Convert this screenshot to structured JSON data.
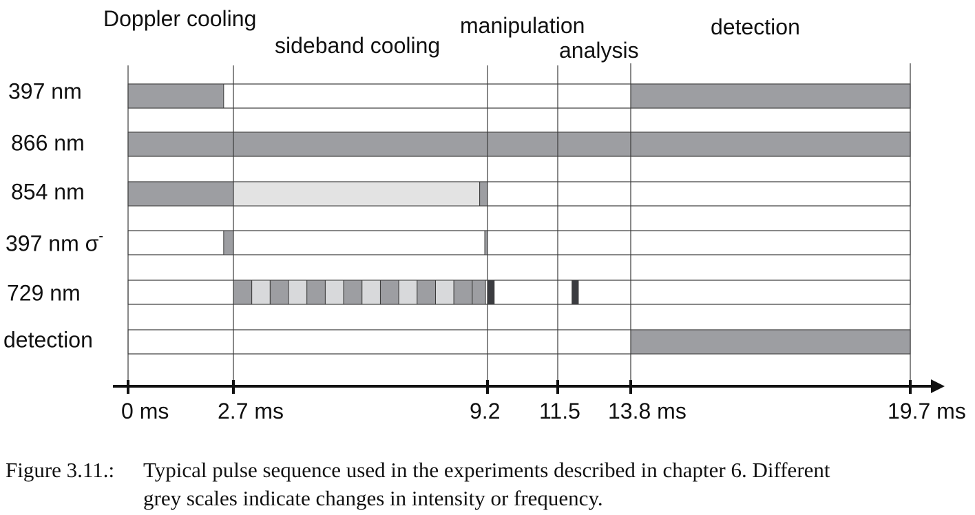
{
  "phases": [
    {
      "label": "Doppler cooling"
    },
    {
      "label": "sideband cooling"
    },
    {
      "label": "manipulation"
    },
    {
      "label": "analysis"
    },
    {
      "label": "detection"
    }
  ],
  "rows": [
    {
      "label": "397 nm",
      "segments": [
        {
          "t0": 0,
          "t1": 2.45,
          "shade": "#9d9ea2"
        },
        {
          "t0": 13.8,
          "t1": 19.7,
          "shade": "#9d9ea2"
        }
      ]
    },
    {
      "label": "866 nm",
      "segments": [
        {
          "t0": 0,
          "t1": 19.7,
          "shade": "#9d9ea2"
        }
      ]
    },
    {
      "label": "854 nm",
      "segments": [
        {
          "t0": 0,
          "t1": 2.7,
          "shade": "#9d9ea2"
        },
        {
          "t0": 2.7,
          "t1": 9.0,
          "shade": "#e3e3e3"
        },
        {
          "t0": 9.0,
          "t1": 9.2,
          "shade": "#9d9ea2"
        }
      ]
    },
    {
      "label": "397 nm σ",
      "superscript": "-",
      "segments": [
        {
          "t0": 2.45,
          "t1": 2.7,
          "shade": "#9d9ea2"
        },
        {
          "t0": 9.13,
          "t1": 9.2,
          "shade": "#9d9ea2"
        }
      ]
    },
    {
      "label": "729 nm",
      "segments": [
        {
          "t0": 2.7,
          "t1": 3.17,
          "shade": "#9d9ea2"
        },
        {
          "t0": 3.17,
          "t1": 3.64,
          "shade": "#d8d9db"
        },
        {
          "t0": 3.64,
          "t1": 4.11,
          "shade": "#9d9ea2"
        },
        {
          "t0": 4.11,
          "t1": 4.58,
          "shade": "#d8d9db"
        },
        {
          "t0": 4.58,
          "t1": 5.05,
          "shade": "#9d9ea2"
        },
        {
          "t0": 5.05,
          "t1": 5.52,
          "shade": "#d8d9db"
        },
        {
          "t0": 5.52,
          "t1": 5.99,
          "shade": "#9d9ea2"
        },
        {
          "t0": 5.99,
          "t1": 6.46,
          "shade": "#d8d9db"
        },
        {
          "t0": 6.46,
          "t1": 6.93,
          "shade": "#9d9ea2"
        },
        {
          "t0": 6.93,
          "t1": 7.4,
          "shade": "#d8d9db"
        },
        {
          "t0": 7.4,
          "t1": 7.87,
          "shade": "#9d9ea2"
        },
        {
          "t0": 7.87,
          "t1": 8.34,
          "shade": "#d8d9db"
        },
        {
          "t0": 8.34,
          "t1": 8.81,
          "shade": "#9d9ea2"
        },
        {
          "t0": 8.81,
          "t1": 9.15,
          "shade": "#9d9ea2"
        },
        {
          "t0": 9.2,
          "t1": 9.42,
          "shade": "#3b3c40"
        },
        {
          "t0": 11.95,
          "t1": 12.15,
          "shade": "#3b3c40"
        }
      ]
    },
    {
      "label": "detection",
      "segments": [
        {
          "t0": 13.8,
          "t1": 19.7,
          "shade": "#9d9ea2"
        }
      ]
    }
  ],
  "boundaries": [
    0,
    2.7,
    9.2,
    11.5,
    13.8,
    19.7
  ],
  "axis": {
    "ticks": [
      {
        "t": 0,
        "label": "0 ms"
      },
      {
        "t": 2.7,
        "label": "2.7 ms"
      },
      {
        "t": 9.2,
        "label": "9.2"
      },
      {
        "t": 11.5,
        "label": "11.5"
      },
      {
        "t": 13.8,
        "label": "13.8 ms"
      },
      {
        "t": 19.7,
        "label": "19.7 ms"
      }
    ]
  },
  "caption": {
    "number": "Figure 3.11.:",
    "line1": "Typical pulse sequence used in the experiments described in chapter 6. Different",
    "line2": "grey scales indicate changes in intensity or frequency."
  }
}
